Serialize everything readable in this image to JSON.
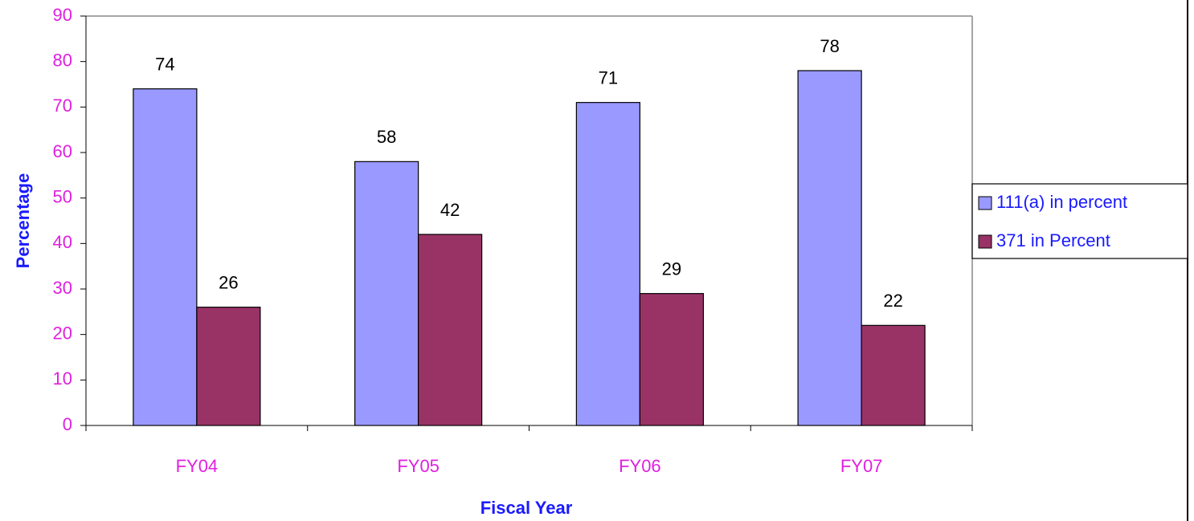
{
  "chart_data": {
    "type": "bar",
    "categories": [
      "FY04",
      "FY05",
      "FY06",
      "FY07"
    ],
    "series": [
      {
        "name": "111(a) in percent",
        "color": "#9999ff",
        "values": [
          74,
          58,
          71,
          78
        ]
      },
      {
        "name": "371 in Percent",
        "color": "#993366",
        "values": [
          26,
          42,
          29,
          22
        ]
      }
    ],
    "x_label": "Fiscal Year",
    "y_label": "Percentage",
    "ylim": [
      0,
      90
    ],
    "yticks": [
      0,
      10,
      20,
      30,
      40,
      50,
      60,
      70,
      80,
      90
    ],
    "legend": "right",
    "grid": false
  }
}
